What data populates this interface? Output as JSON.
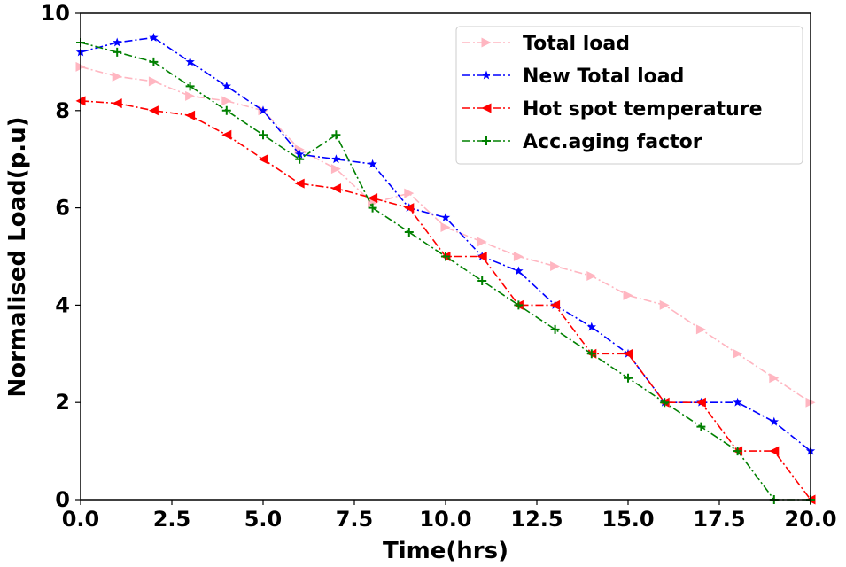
{
  "chart_data": {
    "type": "line",
    "title": "",
    "xlabel": "Time(hrs)",
    "ylabel": "Normalised Load(p.u)",
    "xlim": [
      0,
      20
    ],
    "ylim": [
      0,
      10
    ],
    "x_ticks": [
      "0.0",
      "2.5",
      "5.0",
      "7.5",
      "10.0",
      "12.5",
      "15.0",
      "17.5",
      "20.0"
    ],
    "y_ticks": [
      "0",
      "2",
      "4",
      "6",
      "8",
      "10"
    ],
    "x": [
      0,
      1,
      2,
      3,
      4,
      5,
      6,
      7,
      8,
      9,
      10,
      11,
      12,
      13,
      14,
      15,
      16,
      17,
      18,
      19,
      20
    ],
    "grid": false,
    "legend_position": "top-right",
    "series": [
      {
        "name": "Total load",
        "color": "#ffb6c1",
        "marker": "triangle-right",
        "values": [
          8.9,
          8.7,
          8.6,
          8.3,
          8.2,
          8.0,
          7.2,
          6.8,
          6.1,
          6.3,
          5.6,
          5.3,
          5.0,
          4.8,
          4.6,
          4.2,
          4.0,
          3.5,
          3.0,
          2.5,
          2.0
        ]
      },
      {
        "name": "New Total load",
        "color": "#0000ff",
        "marker": "star",
        "values": [
          9.2,
          9.4,
          9.5,
          9.0,
          8.5,
          8.0,
          7.1,
          7.0,
          6.9,
          6.0,
          5.8,
          5.0,
          4.7,
          4.0,
          3.55,
          3.0,
          2.0,
          2.0,
          2.0,
          1.6,
          1.0
        ]
      },
      {
        "name": "Hot spot temperature",
        "color": "#ff0000",
        "marker": "triangle-left",
        "values": [
          8.2,
          8.15,
          8.0,
          7.9,
          7.5,
          7.0,
          6.5,
          6.4,
          6.2,
          6.0,
          5.0,
          5.0,
          4.0,
          4.0,
          3.0,
          3.0,
          2.0,
          2.0,
          1.0,
          1.0,
          0.0
        ]
      },
      {
        "name": "Acc.aging factor",
        "color": "#008000",
        "marker": "plus",
        "values": [
          9.4,
          9.2,
          9.0,
          8.5,
          8.0,
          7.5,
          7.0,
          7.5,
          6.0,
          5.5,
          5.0,
          4.5,
          4.0,
          3.5,
          3.0,
          2.5,
          2.0,
          1.5,
          1.0,
          0.0,
          0.0
        ]
      }
    ]
  }
}
